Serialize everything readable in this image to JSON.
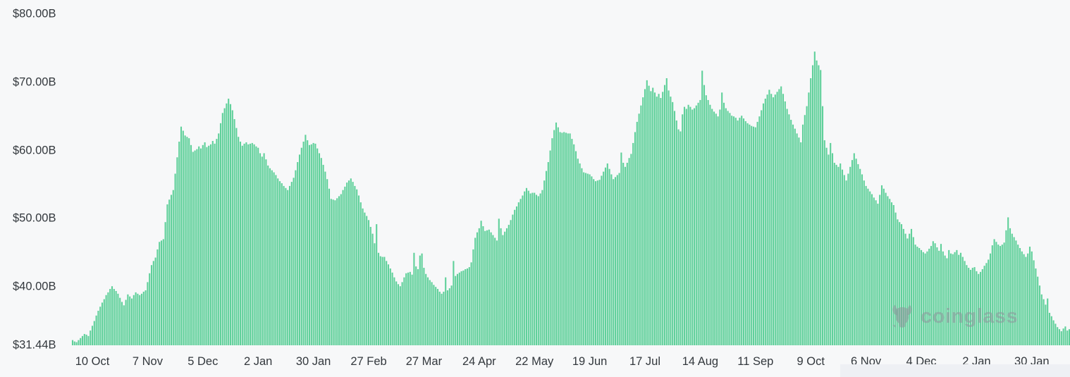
{
  "page": {
    "background": "#f7f8f9"
  },
  "watermark": {
    "text": "coinglass",
    "icon": "coinglass-bull-logo",
    "color": "#8d949b"
  },
  "chart_data": {
    "type": "bar",
    "title": "",
    "xlabel": "",
    "ylabel": "",
    "unit": "USD billions",
    "grid": false,
    "legend": "none",
    "ylim": [
      31.44,
      80
    ],
    "bar_color": "#5fd09a",
    "y_ticks": [
      {
        "label": "$80.00B",
        "value": 80
      },
      {
        "label": "$70.00B",
        "value": 70
      },
      {
        "label": "$60.00B",
        "value": 60
      },
      {
        "label": "$50.00B",
        "value": 50
      },
      {
        "label": "$40.00B",
        "value": 40
      },
      {
        "label": "$31.44B",
        "value": 31.44
      }
    ],
    "x_ticks": [
      {
        "label": "10 Oct",
        "index": 10
      },
      {
        "label": "7 Nov",
        "index": 38
      },
      {
        "label": "5 Dec",
        "index": 66
      },
      {
        "label": "2 Jan",
        "index": 94
      },
      {
        "label": "30 Jan",
        "index": 122
      },
      {
        "label": "27 Feb",
        "index": 150
      },
      {
        "label": "27 Mar",
        "index": 178
      },
      {
        "label": "24 Apr",
        "index": 206
      },
      {
        "label": "22 May",
        "index": 234
      },
      {
        "label": "19 Jun",
        "index": 262
      },
      {
        "label": "17 Jul",
        "index": 290
      },
      {
        "label": "14 Aug",
        "index": 318
      },
      {
        "label": "11 Sep",
        "index": 346
      },
      {
        "label": "9 Oct",
        "index": 374
      },
      {
        "label": "6 Nov",
        "index": 402
      },
      {
        "label": "4 Dec",
        "index": 430
      },
      {
        "label": "2 Jan",
        "index": 458
      },
      {
        "label": "30 Jan",
        "index": 486
      }
    ],
    "values": [
      32.2,
      32.0,
      31.9,
      32.2,
      32.5,
      32.8,
      33.1,
      33.0,
      32.8,
      33.6,
      34.3,
      35.0,
      35.8,
      36.5,
      37.1,
      37.7,
      38.2,
      38.8,
      39.2,
      39.7,
      40.1,
      39.7,
      39.4,
      39.0,
      38.4,
      37.8,
      37.3,
      38.1,
      38.9,
      38.6,
      38.3,
      38.8,
      39.2,
      39.0,
      38.8,
      39.0,
      39.3,
      39.5,
      40.7,
      42.0,
      43.2,
      43.8,
      44.3,
      45.5,
      46.6,
      46.8,
      47.0,
      49.5,
      52.1,
      52.8,
      53.5,
      54.2,
      56.6,
      59.0,
      61.3,
      63.5,
      62.9,
      62.2,
      62.0,
      61.8,
      60.8,
      59.8,
      60.0,
      60.2,
      60.6,
      60.3,
      60.8,
      61.2,
      60.5,
      60.7,
      60.9,
      61.4,
      61.0,
      61.7,
      62.5,
      64.0,
      65.5,
      66.2,
      66.9,
      67.6,
      66.8,
      65.9,
      64.6,
      63.3,
      62.0,
      61.3,
      60.7,
      61.0,
      61.2,
      60.9,
      61.0,
      61.1,
      60.9,
      60.6,
      60.4,
      59.6,
      59.1,
      59.6,
      58.7,
      57.8,
      57.4,
      57.1,
      56.8,
      56.4,
      55.9,
      55.5,
      55.2,
      54.8,
      54.5,
      54.2,
      54.8,
      55.4,
      56.0,
      57.1,
      58.3,
      59.4,
      60.4,
      61.3,
      62.3,
      61.5,
      60.8,
      60.9,
      61.1,
      61.0,
      60.3,
      59.6,
      58.9,
      57.9,
      56.9,
      55.8,
      54.4,
      52.9,
      52.8,
      52.7,
      53.0,
      53.3,
      53.6,
      54.2,
      54.7,
      55.3,
      55.6,
      55.9,
      55.4,
      54.8,
      54.3,
      53.4,
      52.4,
      51.5,
      50.9,
      50.4,
      49.8,
      48.8,
      47.8,
      46.4,
      49.2,
      45.0,
      44.5,
      44.4,
      44.4,
      43.8,
      43.3,
      42.7,
      42.1,
      41.4,
      40.8,
      40.4,
      40.1,
      40.7,
      41.4,
      42.0,
      42.1,
      42.2,
      41.8,
      45.0,
      43.0,
      42.6,
      44.6,
      44.9,
      42.8,
      41.9,
      41.4,
      41.0,
      40.7,
      40.3,
      40.0,
      39.7,
      39.3,
      39.0,
      39.3,
      41.4,
      39.5,
      39.8,
      40.2,
      43.8,
      41.6,
      41.9,
      42.1,
      42.3,
      42.4,
      42.6,
      42.7,
      42.9,
      43.6,
      45.5,
      47.2,
      48.0,
      48.6,
      49.7,
      48.9,
      48.2,
      48.3,
      48.4,
      48.0,
      47.6,
      47.2,
      46.8,
      50.0,
      48.6,
      47.6,
      48.1,
      48.6,
      49.1,
      49.8,
      50.6,
      51.3,
      51.8,
      52.4,
      52.9,
      53.4,
      54.0,
      54.5,
      54.1,
      53.7,
      53.8,
      53.8,
      53.5,
      53.3,
      53.7,
      54.2,
      55.6,
      57.0,
      58.3,
      60.0,
      61.8,
      63.0,
      64.1,
      63.4,
      62.7,
      62.6,
      62.7,
      62.6,
      62.5,
      62.5,
      61.7,
      60.9,
      59.9,
      58.8,
      58.1,
      57.4,
      56.8,
      56.7,
      56.6,
      56.5,
      56.2,
      55.8,
      55.5,
      55.6,
      55.7,
      56.3,
      56.9,
      57.5,
      58.1,
      57.3,
      56.5,
      55.8,
      56.1,
      56.4,
      56.7,
      59.7,
      58.2,
      57.6,
      58.2,
      58.9,
      59.5,
      61.1,
      62.7,
      64.2,
      65.4,
      66.6,
      67.8,
      69.0,
      70.3,
      69.5,
      68.7,
      69.2,
      68.5,
      67.9,
      68.3,
      67.7,
      68.6,
      69.6,
      70.6,
      68.8,
      67.9,
      67.1,
      65.8,
      64.4,
      63.1,
      62.8,
      65.3,
      66.4,
      66.1,
      66.7,
      66.4,
      66.0,
      66.2,
      66.6,
      67.0,
      67.4,
      71.7,
      69.6,
      68.1,
      67.4,
      66.7,
      66.1,
      65.7,
      65.4,
      65.0,
      66.0,
      68.5,
      67.0,
      66.2,
      65.8,
      65.5,
      65.1,
      65.0,
      64.8,
      64.4,
      64.8,
      65.1,
      64.7,
      64.3,
      64.0,
      63.8,
      63.6,
      63.5,
      63.4,
      64.2,
      65.0,
      65.9,
      66.9,
      67.6,
      68.2,
      68.9,
      68.3,
      67.8,
      68.2,
      68.6,
      69.0,
      69.4,
      68.3,
      67.2,
      66.1,
      65.3,
      64.5,
      63.8,
      63.2,
      62.5,
      61.9,
      61.2,
      63.8,
      65.2,
      66.5,
      68.5,
      70.6,
      72.5,
      74.5,
      73.2,
      72.5,
      71.8,
      66.5,
      61.5,
      60.4,
      59.4,
      61.1,
      59.6,
      58.2,
      57.9,
      57.6,
      58.1,
      57.2,
      56.4,
      55.6,
      56.6,
      57.6,
      58.6,
      59.6,
      58.8,
      58.0,
      57.3,
      56.5,
      55.6,
      54.8,
      54.4,
      54.0,
      53.6,
      53.1,
      52.7,
      52.2,
      53.5,
      54.9,
      54.4,
      53.8,
      53.3,
      52.9,
      52.4,
      52.0,
      50.9,
      49.9,
      49.5,
      49.2,
      48.5,
      47.8,
      47.1,
      47.8,
      48.5,
      47.3,
      46.2,
      45.9,
      45.7,
      45.4,
      45.1,
      44.9,
      45.2,
      45.6,
      46.0,
      46.7,
      46.4,
      45.8,
      45.3,
      46.3,
      45.2,
      44.6,
      44.2,
      45.4,
      44.9,
      44.8,
      45.1,
      45.4,
      44.7,
      45.0,
      44.4,
      43.8,
      43.2,
      42.8,
      42.5,
      42.8,
      42.9,
      42.3,
      41.9,
      42.2,
      42.6,
      43.1,
      43.5,
      44.0,
      44.9,
      46.1,
      47.0,
      46.6,
      46.2,
      46.0,
      46.2,
      46.5,
      48.3,
      50.2,
      48.6,
      47.8,
      47.3,
      46.8,
      46.2,
      45.7,
      45.2,
      44.8,
      44.4,
      44.9,
      45.9,
      45.2,
      43.9,
      42.7,
      41.5,
      40.2,
      38.9,
      38.2,
      37.4,
      38.3,
      36.2,
      35.7,
      35.1,
      34.6,
      34.1,
      33.8,
      33.5,
      33.9,
      34.2,
      33.6,
      33.8
    ]
  }
}
